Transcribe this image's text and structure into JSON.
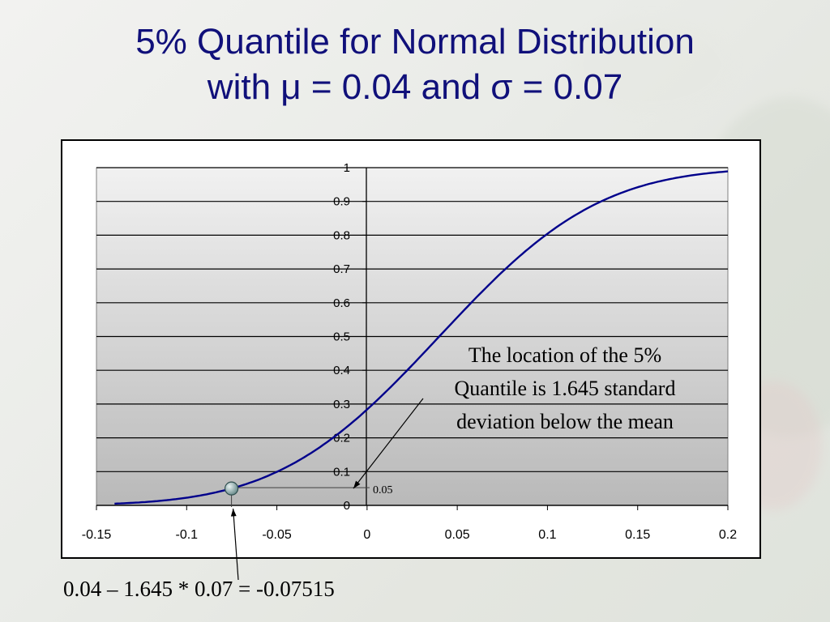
{
  "slide": {
    "title_line1": "5% Quantile for Normal Distribution",
    "title_line2": "with μ = 0.04 and σ = 0.07",
    "formula": "0.04 – 1.645 * 0.07 = -0.07515"
  },
  "annotation": {
    "lines": [
      "The location of the 5%",
      "Quantile is 1.645 standard",
      "deviation below the mean"
    ],
    "level_label": "0.05"
  },
  "chart_data": {
    "type": "line",
    "title": "",
    "xlabel": "",
    "ylabel": "",
    "xlim": [
      -0.15,
      0.2
    ],
    "ylim": [
      0,
      1
    ],
    "x_ticks": [
      "-0.15",
      "-0.1",
      "-0.05",
      "0",
      "0.05",
      "0.1",
      "0.15",
      "0.2"
    ],
    "y_ticks": [
      "0",
      "0.1",
      "0.2",
      "0.3",
      "0.4",
      "0.5",
      "0.6",
      "0.7",
      "0.8",
      "0.9",
      "1"
    ],
    "grid": true,
    "series": [
      {
        "color": "#00008b",
        "x": [
          -0.14,
          -0.13,
          -0.12,
          -0.11,
          -0.1,
          -0.09,
          -0.08,
          -0.07,
          -0.06,
          -0.05,
          -0.04,
          -0.03,
          -0.02,
          -0.01,
          0.0,
          0.01,
          0.02,
          0.03,
          0.04,
          0.05,
          0.06,
          0.07,
          0.08,
          0.09,
          0.1,
          0.11,
          0.12,
          0.13,
          0.14,
          0.15,
          0.16,
          0.17,
          0.18,
          0.19,
          0.2
        ],
        "y": [
          0.006,
          0.01,
          0.015,
          0.022,
          0.032,
          0.045,
          0.062,
          0.084,
          0.11,
          0.14,
          0.176,
          0.218,
          0.266,
          0.32,
          0.285,
          0.34,
          0.39,
          0.445,
          0.5,
          0.555,
          0.62,
          0.675,
          0.725,
          0.77,
          0.805,
          0.845,
          0.875,
          0.9,
          0.925,
          0.945,
          0.96,
          0.97,
          0.98,
          0.987,
          0.99
        ]
      }
    ],
    "highlight_point": {
      "x": -0.07515,
      "y": 0.05
    },
    "colors": {
      "curve": "#00008b",
      "title": "#10107a",
      "marker": "#7a9a9a"
    }
  }
}
